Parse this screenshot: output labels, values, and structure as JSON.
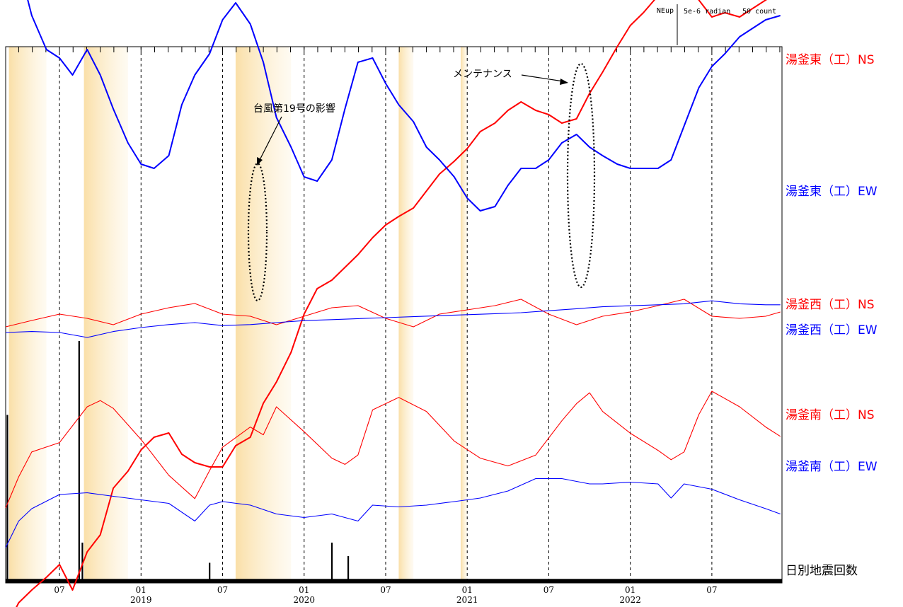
{
  "chart_data": {
    "type": "line",
    "scale_labels": {
      "direction": "NEup",
      "tilt": "5e-6 radian",
      "count": "50 count"
    },
    "x_axis": {
      "ticks": [
        {
          "month": "07",
          "year": ""
        },
        {
          "month": "01",
          "year": "2019"
        },
        {
          "month": "07",
          "year": ""
        },
        {
          "month": "01",
          "year": "2020"
        },
        {
          "month": "07",
          "year": ""
        },
        {
          "month": "01",
          "year": "2021"
        },
        {
          "month": "07",
          "year": ""
        },
        {
          "month": "01",
          "year": "2022"
        },
        {
          "month": "07",
          "year": ""
        }
      ]
    },
    "annotations": [
      {
        "text": "台風第19号の影響",
        "type": "ellipse"
      },
      {
        "text": "メンテナンス",
        "type": "ellipse"
      }
    ],
    "series": [
      {
        "name": "湯釜東（工）NS",
        "color": "#ff0000",
        "x": [
          2018.17,
          2018.25,
          2018.33,
          2018.42,
          2018.5,
          2018.58,
          2018.67,
          2018.75,
          2018.83,
          2018.92,
          2019.0,
          2019.08,
          2019.17,
          2019.25,
          2019.33,
          2019.42,
          2019.5,
          2019.58,
          2019.67,
          2019.75,
          2019.83,
          2019.92,
          2020.0,
          2020.08,
          2020.17,
          2020.25,
          2020.33,
          2020.42,
          2020.5,
          2020.58,
          2020.67,
          2020.75,
          2020.83,
          2020.92,
          2021.0,
          2021.08,
          2021.17,
          2021.25,
          2021.33,
          2021.42,
          2021.5,
          2021.58,
          2021.67,
          2021.75,
          2021.83,
          2021.92,
          2022.0,
          2022.08,
          2022.17,
          2022.25,
          2022.33,
          2022.42,
          2022.5,
          2022.58,
          2022.67,
          2022.75,
          2022.83,
          2022.92
        ],
        "y": [
          -6.8,
          -6.2,
          -5.9,
          -5.6,
          -5.3,
          -5.9,
          -5.0,
          -4.6,
          -3.5,
          -3.1,
          -2.6,
          -2.3,
          -2.2,
          -2.7,
          -2.9,
          -3.0,
          -3.0,
          -2.5,
          -2.3,
          -1.5,
          -1.0,
          -0.3,
          0.6,
          1.2,
          1.4,
          1.7,
          2.0,
          2.4,
          2.7,
          2.9,
          3.1,
          3.5,
          3.9,
          4.2,
          4.5,
          4.9,
          5.1,
          5.4,
          5.6,
          5.4,
          5.3,
          5.1,
          5.2,
          5.8,
          6.3,
          6.9,
          7.4,
          7.7,
          8.1,
          8.4,
          8.6,
          8.0,
          7.6,
          7.7,
          7.6,
          7.8,
          8.0,
          8.2
        ]
      },
      {
        "name": "湯釜東（工）EW",
        "color": "#0000ff",
        "x": [
          2018.17,
          2018.25,
          2018.33,
          2018.42,
          2018.5,
          2018.58,
          2018.67,
          2018.75,
          2018.83,
          2018.92,
          2019.0,
          2019.08,
          2019.17,
          2019.25,
          2019.33,
          2019.42,
          2019.5,
          2019.58,
          2019.67,
          2019.75,
          2019.83,
          2019.92,
          2020.0,
          2020.08,
          2020.17,
          2020.25,
          2020.33,
          2020.42,
          2020.5,
          2020.58,
          2020.67,
          2020.75,
          2020.83,
          2020.92,
          2021.0,
          2021.08,
          2021.17,
          2021.25,
          2021.33,
          2021.42,
          2021.5,
          2021.58,
          2021.67,
          2021.75,
          2021.83,
          2021.92,
          2022.0,
          2022.08,
          2022.17,
          2022.25,
          2022.33,
          2022.42,
          2022.5,
          2022.58,
          2022.67,
          2022.75,
          2022.83,
          2022.92
        ],
        "y": [
          6.0,
          3.8,
          2.6,
          1.8,
          1.6,
          1.2,
          1.8,
          1.2,
          0.4,
          -0.4,
          -0.9,
          -1.0,
          -0.7,
          0.5,
          1.2,
          1.7,
          2.5,
          2.9,
          2.4,
          1.5,
          0.2,
          -0.5,
          -1.2,
          -1.3,
          -0.8,
          0.4,
          1.5,
          1.6,
          1.0,
          0.5,
          0.1,
          -0.5,
          -0.8,
          -1.2,
          -1.7,
          -2.0,
          -1.9,
          -1.4,
          -1.0,
          -1.0,
          -0.8,
          -0.4,
          -0.2,
          -0.5,
          -0.7,
          -0.9,
          -1.0,
          -1.0,
          -1.0,
          -0.8,
          0.0,
          0.9,
          1.4,
          1.7,
          2.1,
          2.3,
          2.5,
          2.6
        ]
      },
      {
        "name": "湯釜西（工）NS",
        "color": "#ff0000",
        "x": [
          2018.17,
          2018.33,
          2018.5,
          2018.67,
          2018.83,
          2019.0,
          2019.17,
          2019.33,
          2019.5,
          2019.67,
          2019.83,
          2020.0,
          2020.17,
          2020.33,
          2020.5,
          2020.67,
          2020.83,
          2021.0,
          2021.17,
          2021.33,
          2021.5,
          2021.67,
          2021.83,
          2022.0,
          2022.17,
          2022.33,
          2022.5,
          2022.67,
          2022.83,
          2022.92
        ],
        "y": [
          0.0,
          0.3,
          0.6,
          0.4,
          0.1,
          0.6,
          0.9,
          1.1,
          0.6,
          0.5,
          0.1,
          0.5,
          0.9,
          1.0,
          0.4,
          0.0,
          0.6,
          0.8,
          1.0,
          1.3,
          0.6,
          0.1,
          0.5,
          0.7,
          1.0,
          1.3,
          0.5,
          0.4,
          0.5,
          0.7
        ]
      },
      {
        "name": "湯釜西（工）EW",
        "color": "#0000ff",
        "x": [
          2018.17,
          2018.33,
          2018.5,
          2018.67,
          2018.83,
          2019.0,
          2019.17,
          2019.33,
          2019.5,
          2019.67,
          2019.83,
          2020.0,
          2020.17,
          2020.33,
          2020.5,
          2020.67,
          2020.83,
          2021.0,
          2021.17,
          2021.33,
          2021.5,
          2021.67,
          2021.83,
          2022.0,
          2022.17,
          2022.33,
          2022.5,
          2022.67,
          2022.83,
          2022.92
        ],
        "y": [
          0.0,
          0.1,
          0.0,
          -0.5,
          0.1,
          0.5,
          0.8,
          1.0,
          0.7,
          0.8,
          1.0,
          1.2,
          1.3,
          1.4,
          1.5,
          1.6,
          1.7,
          1.8,
          1.9,
          2.0,
          2.2,
          2.4,
          2.6,
          2.7,
          2.8,
          2.9,
          3.2,
          2.9,
          2.8,
          2.8
        ]
      },
      {
        "name": "湯釜南（工）NS",
        "color": "#ff0000",
        "x": [
          2018.17,
          2018.25,
          2018.33,
          2018.5,
          2018.67,
          2018.75,
          2018.83,
          2019.0,
          2019.17,
          2019.33,
          2019.42,
          2019.5,
          2019.67,
          2019.75,
          2019.83,
          2020.0,
          2020.17,
          2020.25,
          2020.33,
          2020.42,
          2020.58,
          2020.75,
          2020.92,
          2021.08,
          2021.25,
          2021.42,
          2021.58,
          2021.67,
          2021.75,
          2021.83,
          2022.0,
          2022.17,
          2022.25,
          2022.33,
          2022.42,
          2022.5,
          2022.67,
          2022.83,
          2022.92
        ],
        "y": [
          0.0,
          2.0,
          3.6,
          4.2,
          6.5,
          6.9,
          6.4,
          4.4,
          2.1,
          0.6,
          2.4,
          3.9,
          5.2,
          4.7,
          6.5,
          4.9,
          3.2,
          2.8,
          3.4,
          6.3,
          7.1,
          6.2,
          4.3,
          3.2,
          2.7,
          3.4,
          5.6,
          6.7,
          7.4,
          6.2,
          4.8,
          3.7,
          3.1,
          3.6,
          6.0,
          7.5,
          6.5,
          5.2,
          4.6
        ]
      },
      {
        "name": "湯釜南（工）EW",
        "color": "#0000ff",
        "x": [
          2018.17,
          2018.25,
          2018.33,
          2018.5,
          2018.67,
          2018.83,
          2019.0,
          2019.17,
          2019.33,
          2019.42,
          2019.5,
          2019.67,
          2019.83,
          2020.0,
          2020.17,
          2020.33,
          2020.42,
          2020.58,
          2020.75,
          2020.92,
          2021.08,
          2021.25,
          2021.42,
          2021.58,
          2021.75,
          2021.83,
          2022.0,
          2022.17,
          2022.25,
          2022.33,
          2022.5,
          2022.67,
          2022.83,
          2022.92
        ],
        "y": [
          0.0,
          1.5,
          2.2,
          3.0,
          3.1,
          2.9,
          2.7,
          2.5,
          1.5,
          2.4,
          2.6,
          2.4,
          1.9,
          1.7,
          1.9,
          1.5,
          2.4,
          2.3,
          2.4,
          2.6,
          2.8,
          3.2,
          3.9,
          3.9,
          3.6,
          3.6,
          3.7,
          3.6,
          2.8,
          3.6,
          3.3,
          2.7,
          2.2,
          1.9
        ]
      }
    ],
    "bars": {
      "name": "日別地震回数",
      "color": "#000000",
      "peaks": [
        {
          "x": 2018.18,
          "count": 25
        },
        {
          "x": 2018.62,
          "count": 36
        },
        {
          "x": 2018.64,
          "count": 6
        },
        {
          "x": 2019.42,
          "count": 3
        },
        {
          "x": 2020.17,
          "count": 6
        },
        {
          "x": 2020.27,
          "count": 4
        }
      ],
      "baseline_count": 1
    },
    "shaded_periods": [
      {
        "start": 2018.19,
        "end": 2018.42
      },
      {
        "start": 2018.65,
        "end": 2018.92
      },
      {
        "start": 2019.58,
        "end": 2019.92
      },
      {
        "start": 2020.58,
        "end": 2020.67
      },
      {
        "start": 2020.96,
        "end": 2021.0
      }
    ],
    "grid": "vertical dashed at 01 and 07"
  }
}
